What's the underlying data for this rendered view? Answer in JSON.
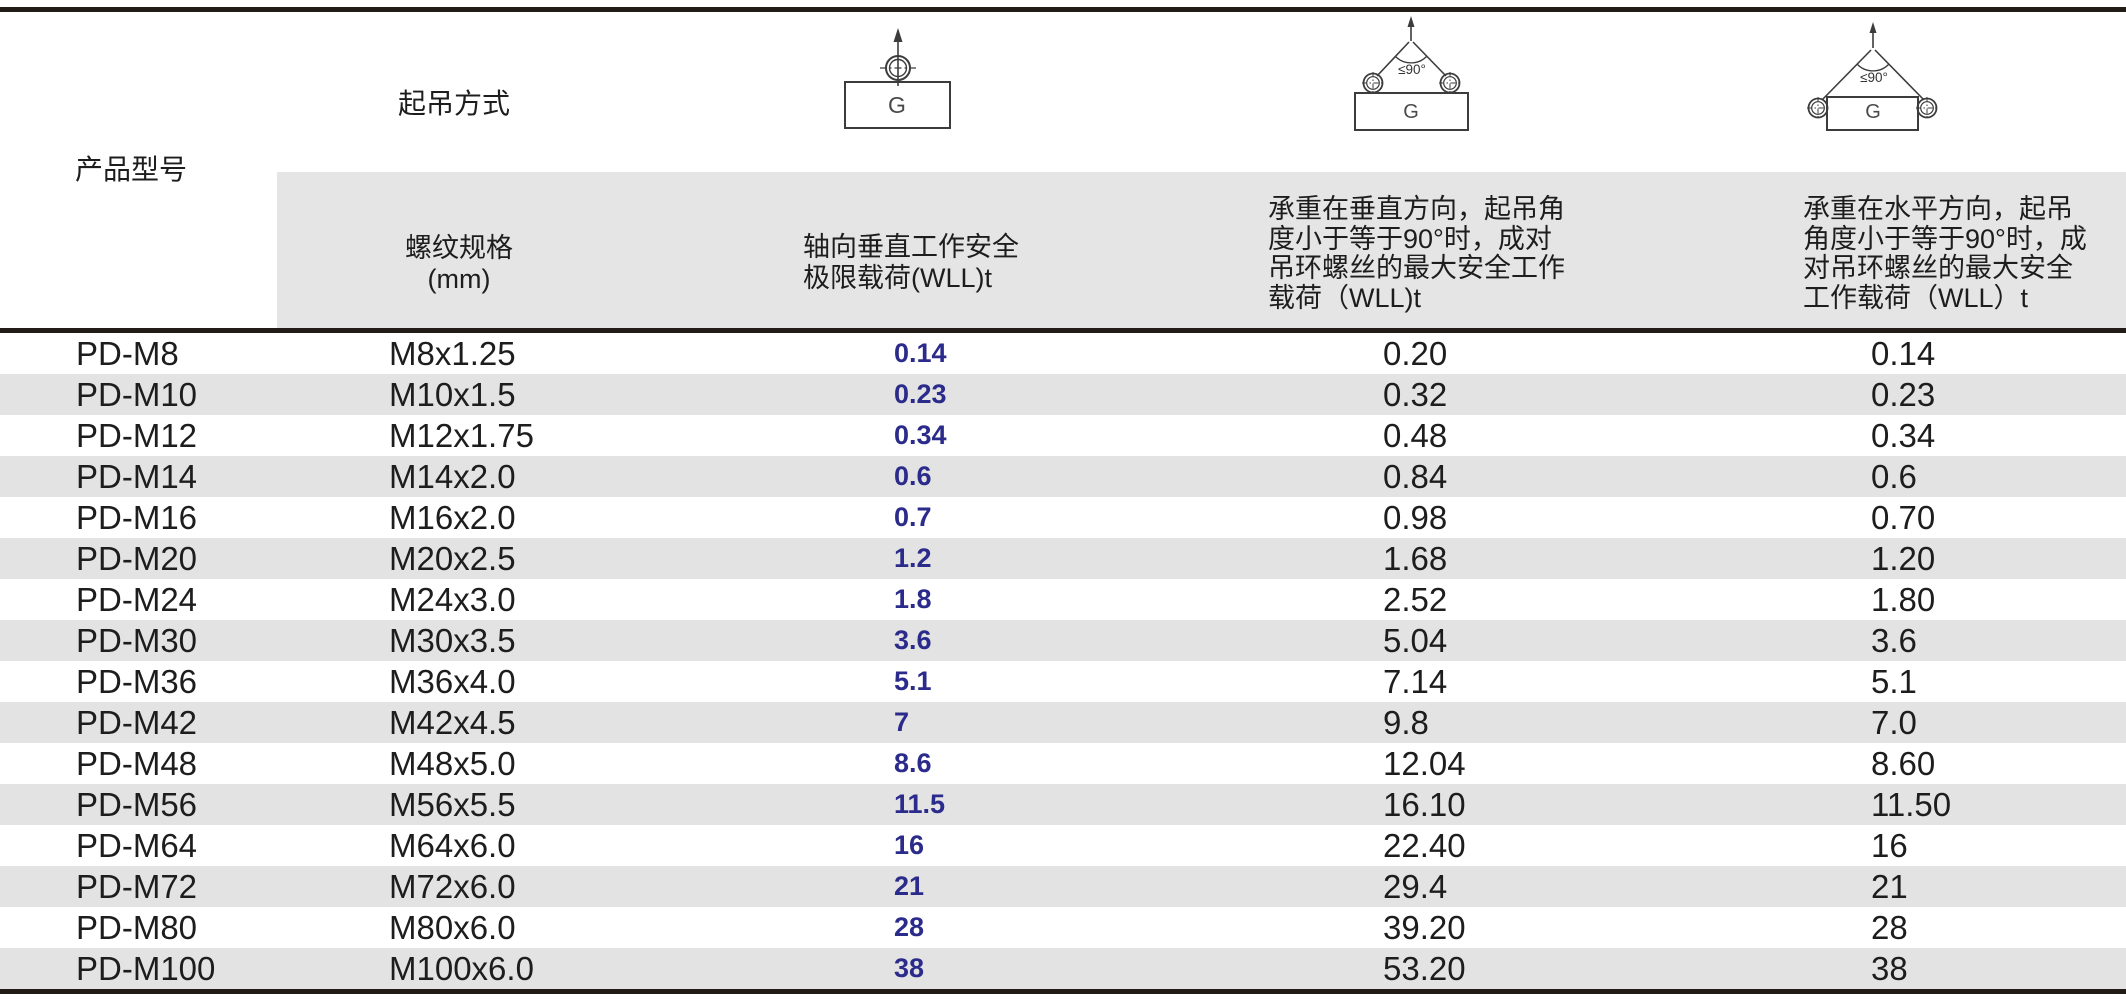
{
  "colors": {
    "accent_blue": "#2b2b8b",
    "stripe_gray": "#e4e3e3",
    "header_gray": "#e6e5e5",
    "rule_line": "#221c16"
  },
  "header": {
    "product_model_label": "产品型号",
    "lifting_method_label": "起吊方式",
    "col_thread": {
      "lines": [
        "螺纹规格",
        "(mm)"
      ]
    },
    "col_axial": {
      "lines": [
        "轴向垂直工作安全",
        "极限载荷(WLL)t"
      ]
    },
    "col_pair_vertical": {
      "lines": [
        "承重在垂直方向，起吊角",
        "度小于等于90°时，成对",
        "吊环螺丝的最大安全工作",
        "载荷（WLL)t"
      ]
    },
    "col_pair_horizontal": {
      "lines": [
        "承重在水平方向，起吊",
        "角度小于等于90°时，成",
        "对吊环螺丝的最大安全",
        "工作载荷（WLL）t"
      ]
    }
  },
  "diagrams": {
    "single_vertical": {
      "load_label": "G"
    },
    "pair_vertical": {
      "load_label": "G",
      "angle_label": "≤90°"
    },
    "pair_horizontal": {
      "load_label": "G",
      "angle_label": "≤90°"
    }
  },
  "table": {
    "rows": [
      {
        "model": "PD-M8",
        "thread": "M8x1.25",
        "wll_axial": "0.14",
        "wll_pair_vertical": "0.20",
        "wll_pair_horizontal": "0.14"
      },
      {
        "model": "PD-M10",
        "thread": "M10x1.5",
        "wll_axial": "0.23",
        "wll_pair_vertical": "0.32",
        "wll_pair_horizontal": "0.23"
      },
      {
        "model": "PD-M12",
        "thread": "M12x1.75",
        "wll_axial": "0.34",
        "wll_pair_vertical": "0.48",
        "wll_pair_horizontal": "0.34"
      },
      {
        "model": "PD-M14",
        "thread": "M14x2.0",
        "wll_axial": "0.6",
        "wll_pair_vertical": "0.84",
        "wll_pair_horizontal": "0.6"
      },
      {
        "model": "PD-M16",
        "thread": "M16x2.0",
        "wll_axial": "0.7",
        "wll_pair_vertical": "0.98",
        "wll_pair_horizontal": "0.70"
      },
      {
        "model": "PD-M20",
        "thread": "M20x2.5",
        "wll_axial": "1.2",
        "wll_pair_vertical": "1.68",
        "wll_pair_horizontal": "1.20"
      },
      {
        "model": "PD-M24",
        "thread": "M24x3.0",
        "wll_axial": "1.8",
        "wll_pair_vertical": "2.52",
        "wll_pair_horizontal": "1.80"
      },
      {
        "model": "PD-M30",
        "thread": "M30x3.5",
        "wll_axial": "3.6",
        "wll_pair_vertical": "5.04",
        "wll_pair_horizontal": "3.6"
      },
      {
        "model": "PD-M36",
        "thread": "M36x4.0",
        "wll_axial": "5.1",
        "wll_pair_vertical": "7.14",
        "wll_pair_horizontal": "5.1"
      },
      {
        "model": "PD-M42",
        "thread": "M42x4.5",
        "wll_axial": "7",
        "wll_pair_vertical": "9.8",
        "wll_pair_horizontal": "7.0"
      },
      {
        "model": "PD-M48",
        "thread": "M48x5.0",
        "wll_axial": "8.6",
        "wll_pair_vertical": "12.04",
        "wll_pair_horizontal": "8.60"
      },
      {
        "model": "PD-M56",
        "thread": "M56x5.5",
        "wll_axial": "11.5",
        "wll_pair_vertical": "16.10",
        "wll_pair_horizontal": "11.50"
      },
      {
        "model": "PD-M64",
        "thread": "M64x6.0",
        "wll_axial": "16",
        "wll_pair_vertical": "22.40",
        "wll_pair_horizontal": "16"
      },
      {
        "model": "PD-M72",
        "thread": "M72x6.0",
        "wll_axial": "21",
        "wll_pair_vertical": "29.4",
        "wll_pair_horizontal": "21"
      },
      {
        "model": "PD-M80",
        "thread": "M80x6.0",
        "wll_axial": "28",
        "wll_pair_vertical": "39.20",
        "wll_pair_horizontal": "28"
      },
      {
        "model": "PD-M100",
        "thread": "M100x6.0",
        "wll_axial": "38",
        "wll_pair_vertical": "53.20",
        "wll_pair_horizontal": "38"
      }
    ]
  }
}
